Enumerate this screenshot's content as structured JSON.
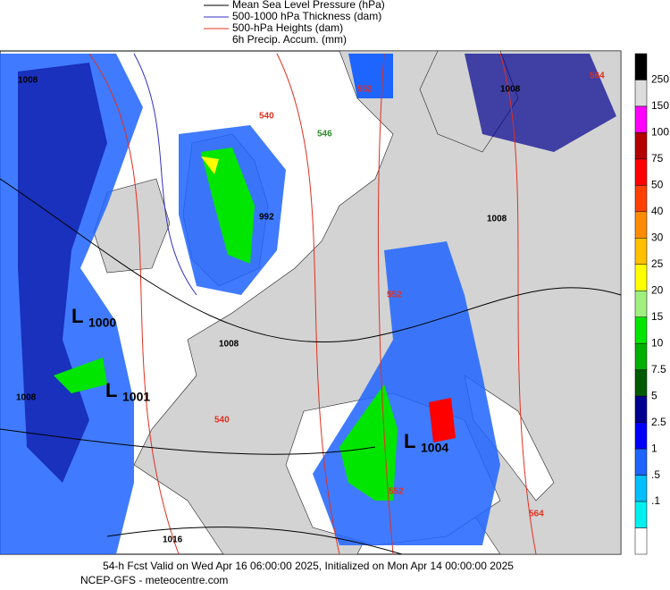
{
  "legend": [
    {
      "text": "Mean Sea Level Pressure (hPa)",
      "color": "#000000"
    },
    {
      "text": "500-1000 hPa Thickness (dam)",
      "color": "#3030c0"
    },
    {
      "text": "500-hPa Heights (dam)",
      "color": "#e03020"
    },
    {
      "text": "6h Precip. Accum. (mm)",
      "color": null
    }
  ],
  "colorbar": {
    "labels": [
      "250",
      "150",
      "100",
      "75",
      "50",
      "40",
      "30",
      "25",
      "20",
      "15",
      "10",
      "7.5",
      "5",
      "2.5",
      "1",
      ".5",
      ".1"
    ],
    "colors": [
      "#000000",
      "#dcdcdc",
      "#ff00ff",
      "#b40000",
      "#ff0000",
      "#ff4000",
      "#ff8c00",
      "#ffc000",
      "#ffff00",
      "#a0f080",
      "#00e600",
      "#00b000",
      "#005a00",
      "#000090",
      "#0000ff",
      "#1e64ff",
      "#00beff",
      "#00f0f0",
      "#ffffff"
    ]
  },
  "lows": [
    {
      "letter": "L",
      "value": "1000"
    },
    {
      "letter": "L",
      "value": "1001"
    },
    {
      "letter": "L",
      "value": "1004"
    }
  ],
  "contour_labels": [
    "992",
    "1008",
    "1008",
    "1008",
    "1008",
    "1016",
    "540",
    "540",
    "546",
    "552",
    "552",
    "552",
    "564",
    "564",
    "1008"
  ],
  "footer": [
    "54-h Fcst Valid on Wed Apr 16 06:00:00 2025, Initialized on Mon Apr 14 00:00:00 2025",
    "NCEP-GFS  - meteocentre.com"
  ]
}
